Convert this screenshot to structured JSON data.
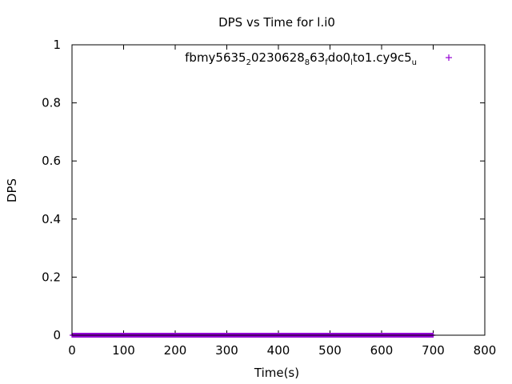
{
  "chart_data": {
    "type": "scatter",
    "title": "DPS vs Time for l.i0",
    "xlabel": "Time(s)",
    "ylabel": "DPS",
    "xlim": [
      0,
      800
    ],
    "ylim": [
      0,
      1
    ],
    "x_ticks": [
      "0",
      "100",
      "200",
      "300",
      "400",
      "500",
      "600",
      "700",
      "800"
    ],
    "y_ticks": [
      "0",
      "0.2",
      "0.4",
      "0.6",
      "0.8",
      "1"
    ],
    "grid": false,
    "legend_position": "top-right",
    "series": [
      {
        "name": "fbmy5635_20230628_863_fdo0_lto1.cy9c5_u",
        "name_parts": [
          {
            "text": "fbmy5635",
            "sub": false
          },
          {
            "text": "2",
            "sub": true
          },
          {
            "text": "0230628",
            "sub": false
          },
          {
            "text": "8",
            "sub": true
          },
          {
            "text": "63",
            "sub": false
          },
          {
            "text": "f",
            "sub": true
          },
          {
            "text": "do0",
            "sub": false
          },
          {
            "text": "l",
            "sub": true
          },
          {
            "text": "to1.cy9c5",
            "sub": false
          },
          {
            "text": "u",
            "sub": true
          }
        ],
        "color": "#9400d3",
        "marker": "plus",
        "x_range": [
          0,
          700
        ],
        "x_step": 1,
        "y_value": 0
      }
    ]
  }
}
